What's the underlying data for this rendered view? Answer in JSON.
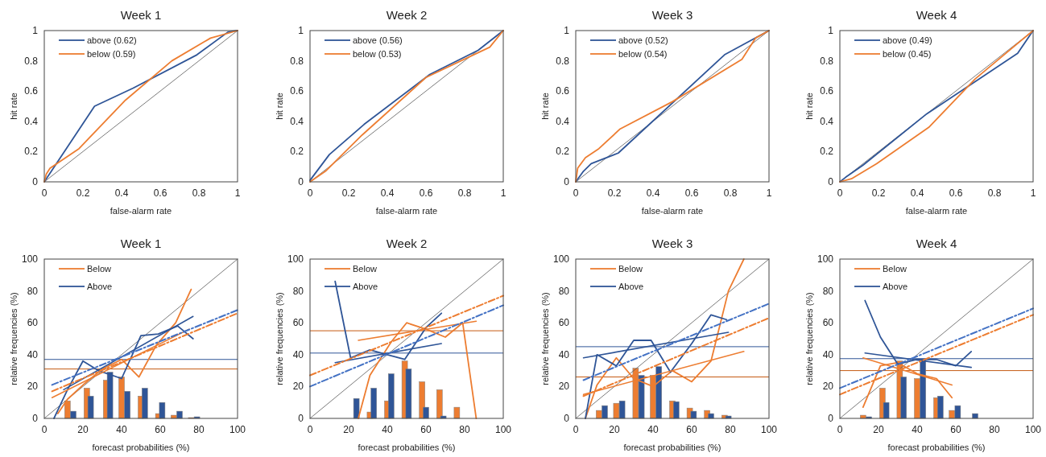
{
  "chart_data": [
    {
      "type": "line",
      "title": "Week 1",
      "xlabel": "false-alarm rate",
      "ylabel": "hit rate",
      "xlim": [
        0,
        1
      ],
      "ylim": [
        0,
        1
      ],
      "xticks": [
        0,
        0.2,
        0.4,
        0.6,
        0.8,
        1
      ],
      "yticks": [
        0,
        0.2,
        0.4,
        0.6,
        0.8,
        1
      ],
      "legend": "top left",
      "series": [
        {
          "color": "#595959",
          "x": [
            0,
            1
          ],
          "values": [
            0,
            1
          ]
        },
        {
          "name": "above (0.62)",
          "color": "#2f5597",
          "x": [
            0,
            0.26,
            0.46,
            0.79,
            0.95,
            1
          ],
          "values": [
            0,
            0.5,
            0.62,
            0.84,
            0.99,
            1
          ]
        },
        {
          "name": "below (0.59)",
          "color": "#ed7d31",
          "x": [
            0,
            0.01,
            0.03,
            0.18,
            0.42,
            0.66,
            0.86,
            1
          ],
          "values": [
            0,
            0.05,
            0.09,
            0.22,
            0.54,
            0.8,
            0.95,
            1
          ]
        }
      ]
    },
    {
      "type": "line",
      "title": "Week 2",
      "xlabel": "false-alarm rate",
      "ylabel": "hit rate",
      "xlim": [
        0,
        1
      ],
      "ylim": [
        0,
        1
      ],
      "xticks": [
        0,
        0.2,
        0.4,
        0.6,
        0.8,
        1
      ],
      "yticks": [
        0,
        0.2,
        0.4,
        0.6,
        0.8,
        1
      ],
      "legend": "top left",
      "series": [
        {
          "color": "#595959",
          "x": [
            0,
            1
          ],
          "values": [
            0,
            1
          ]
        },
        {
          "name": "above (0.56)",
          "color": "#2f5597",
          "x": [
            0,
            0.1,
            0.28,
            0.62,
            0.87,
            1
          ],
          "values": [
            0.01,
            0.18,
            0.38,
            0.71,
            0.87,
            1
          ]
        },
        {
          "name": "below (0.53)",
          "color": "#ed7d31",
          "x": [
            0,
            0.08,
            0.27,
            0.6,
            0.93,
            1
          ],
          "values": [
            0,
            0.07,
            0.31,
            0.69,
            0.89,
            1
          ]
        }
      ]
    },
    {
      "type": "line",
      "title": "Week 3",
      "xlabel": "false-alarm rate",
      "ylabel": "hit rate",
      "xlim": [
        0,
        1
      ],
      "ylim": [
        0,
        1
      ],
      "xticks": [
        0,
        0.2,
        0.4,
        0.6,
        0.8,
        1
      ],
      "yticks": [
        0,
        0.2,
        0.4,
        0.6,
        0.8,
        1
      ],
      "legend": "top left",
      "series": [
        {
          "color": "#595959",
          "x": [
            0,
            1
          ],
          "values": [
            0,
            1
          ]
        },
        {
          "name": "above (0.52)",
          "color": "#2f5597",
          "x": [
            0,
            0.04,
            0.08,
            0.22,
            0.77,
            1
          ],
          "values": [
            0,
            0.07,
            0.12,
            0.19,
            0.84,
            1
          ]
        },
        {
          "name": "below (0.54)",
          "color": "#ed7d31",
          "x": [
            0,
            0.01,
            0.05,
            0.12,
            0.23,
            0.5,
            0.86,
            0.93,
            1
          ],
          "values": [
            0,
            0.09,
            0.16,
            0.22,
            0.35,
            0.53,
            0.81,
            0.95,
            1
          ]
        }
      ]
    },
    {
      "type": "line",
      "title": "Week 4",
      "xlabel": "false-alarm rate",
      "ylabel": "hit rate",
      "xlim": [
        0,
        1
      ],
      "ylim": [
        0,
        1
      ],
      "xticks": [
        0,
        0.2,
        0.4,
        0.6,
        0.8,
        1
      ],
      "yticks": [
        0,
        0.2,
        0.4,
        0.6,
        0.8,
        1
      ],
      "legend": "top left",
      "series": [
        {
          "color": "#595959",
          "x": [
            0,
            1
          ],
          "values": [
            0,
            1
          ]
        },
        {
          "name": "above (0.49)",
          "color": "#2f5597",
          "x": [
            0,
            0.03,
            0.12,
            0.45,
            0.92,
            1
          ],
          "values": [
            0,
            0.03,
            0.11,
            0.45,
            0.85,
            1
          ]
        },
        {
          "name": "below (0.45)",
          "color": "#ed7d31",
          "x": [
            0,
            0.06,
            0.19,
            0.46,
            0.7,
            1
          ],
          "values": [
            0,
            0.02,
            0.12,
            0.36,
            0.68,
            1
          ]
        }
      ]
    },
    {
      "type": "line",
      "title": "Week 1",
      "xlabel": "forecast probabilities (%)",
      "ylabel": "relative frequencies (%)",
      "xlim": [
        0,
        100
      ],
      "ylim": [
        0,
        100
      ],
      "xticks": [
        0,
        20,
        40,
        60,
        80,
        100
      ],
      "yticks": [
        0,
        20,
        40,
        60,
        80,
        100
      ],
      "legend": "top left",
      "ref_lines": [
        {
          "axis": "y",
          "value": 37,
          "color": "#2f5597"
        },
        {
          "axis": "y",
          "value": 31,
          "color": "#c55a11"
        }
      ],
      "series": [
        {
          "type": "bar",
          "color": "#ed7d31",
          "x": [
            12,
            22,
            32,
            40,
            50,
            59,
            67,
            76
          ],
          "values": [
            11,
            19,
            24,
            26,
            14,
            3,
            2,
            0.5
          ]
        },
        {
          "type": "bar",
          "color": "#2f5597",
          "x": [
            15,
            24,
            34,
            43,
            52,
            61,
            70,
            79
          ],
          "values": [
            4.5,
            14,
            29,
            17,
            19,
            10,
            4.5,
            1
          ]
        },
        {
          "color": "#595959",
          "x": [
            0,
            100
          ],
          "values": [
            0,
            100
          ]
        },
        {
          "name": "Below",
          "color": "#ed7d31",
          "x": [
            7,
            12,
            21,
            30,
            40,
            49,
            58,
            68,
            76
          ],
          "values": [
            3,
            12,
            22,
            31,
            37,
            26,
            46,
            60,
            81
          ]
        },
        {
          "name": "Above",
          "color": "#2f5597",
          "x": [
            5,
            12,
            20,
            28,
            40,
            50,
            59,
            69,
            77
          ],
          "values": [
            0,
            18,
            36,
            30,
            25,
            52,
            53,
            58,
            50
          ]
        },
        {
          "color": "#ed7d31",
          "x": [
            4,
            75
          ],
          "values": [
            13,
            56
          ]
        },
        {
          "color": "#2f5597",
          "x": [
            10,
            77
          ],
          "values": [
            18,
            64
          ]
        },
        {
          "color": "#4472c4",
          "line_style": "dashed",
          "x": [
            4,
            100
          ],
          "values": [
            21,
            68
          ]
        },
        {
          "color": "#ed7d31",
          "line_style": "dashed",
          "x": [
            4,
            100
          ],
          "values": [
            17,
            66
          ]
        }
      ]
    },
    {
      "type": "line",
      "title": "Week 2",
      "xlabel": "forecast probabilities (%)",
      "ylabel": "relative frequencies (%)",
      "xlim": [
        0,
        100
      ],
      "ylim": [
        0,
        100
      ],
      "xticks": [
        0,
        20,
        40,
        60,
        80,
        100
      ],
      "yticks": [
        0,
        20,
        40,
        60,
        80,
        100
      ],
      "legend": "top left",
      "ref_lines": [
        {
          "axis": "y",
          "value": 55,
          "color": "#c55a11"
        },
        {
          "axis": "y",
          "value": 41,
          "color": "#2f5597"
        }
      ],
      "series": [
        {
          "type": "bar",
          "color": "#ed7d31",
          "x": [
            31,
            40,
            49,
            58,
            67,
            76
          ],
          "values": [
            4,
            11,
            36,
            23,
            18,
            7
          ]
        },
        {
          "type": "bar",
          "color": "#2f5597",
          "x": [
            24,
            33,
            42,
            51,
            60,
            69
          ],
          "values": [
            12.5,
            19,
            28,
            31,
            7,
            1.5
          ]
        },
        {
          "color": "#595959",
          "x": [
            0,
            100
          ],
          "values": [
            0,
            100
          ]
        },
        {
          "name": "Below",
          "color": "#ed7d31",
          "x": [
            25,
            31,
            42,
            50,
            60,
            70,
            79,
            86
          ],
          "values": [
            0,
            27,
            48,
            60,
            56,
            51,
            60,
            0
          ]
        },
        {
          "name": "Above",
          "color": "#2f5597",
          "x": [
            13,
            21,
            31,
            40,
            49,
            60,
            68
          ],
          "values": [
            86,
            38,
            43,
            40,
            37,
            57,
            66
          ]
        },
        {
          "color": "#ed7d31",
          "x": [
            25,
            86
          ],
          "values": [
            49,
            61
          ]
        },
        {
          "color": "#2f5597",
          "x": [
            13,
            68
          ],
          "values": [
            35,
            47
          ]
        },
        {
          "color": "#ed7d31",
          "line_style": "dashed",
          "x": [
            0,
            100
          ],
          "values": [
            27,
            77
          ]
        },
        {
          "color": "#4472c4",
          "line_style": "dashed",
          "x": [
            0,
            100
          ],
          "values": [
            20,
            71
          ]
        }
      ]
    },
    {
      "type": "line",
      "title": "Week 3",
      "xlabel": "forecast probabilities (%)",
      "ylabel": "relative frequencies (%)",
      "xlim": [
        0,
        100
      ],
      "ylim": [
        0,
        100
      ],
      "xticks": [
        0,
        20,
        40,
        60,
        80,
        100
      ],
      "yticks": [
        0,
        20,
        40,
        60,
        80,
        100
      ],
      "legend": "top left",
      "ref_lines": [
        {
          "axis": "y",
          "value": 45,
          "color": "#2f5597"
        },
        {
          "axis": "y",
          "value": 26,
          "color": "#c55a11"
        }
      ],
      "series": [
        {
          "type": "bar",
          "color": "#ed7d31",
          "x": [
            12,
            21,
            31,
            40,
            50,
            59,
            68,
            77
          ],
          "values": [
            5,
            9.5,
            31.5,
            27,
            11,
            6.5,
            5,
            2
          ]
        },
        {
          "type": "bar",
          "color": "#2f5597",
          "x": [
            15,
            24,
            34,
            43,
            52,
            61,
            70,
            79
          ],
          "values": [
            8,
            11,
            27,
            32.5,
            10.5,
            4.5,
            3,
            1.5
          ]
        },
        {
          "color": "#595959",
          "x": [
            0,
            100
          ],
          "values": [
            0,
            100
          ]
        },
        {
          "name": "Below",
          "color": "#ed7d31",
          "x": [
            5,
            11,
            21,
            30,
            40,
            50,
            60,
            70,
            79,
            87
          ],
          "values": [
            0,
            21,
            38,
            25,
            20,
            30,
            23,
            36,
            80,
            100
          ]
        },
        {
          "name": "Above",
          "color": "#2f5597",
          "x": [
            5,
            11,
            21,
            30,
            39,
            49,
            60,
            70,
            78
          ],
          "values": [
            0,
            40,
            33,
            49,
            49,
            29,
            47,
            65,
            62
          ]
        },
        {
          "color": "#ed7d31",
          "x": [
            4,
            87
          ],
          "values": [
            15,
            42
          ]
        },
        {
          "color": "#2f5597",
          "x": [
            4,
            79
          ],
          "values": [
            38,
            54
          ]
        },
        {
          "color": "#4472c4",
          "line_style": "dashed",
          "x": [
            4,
            100
          ],
          "values": [
            24,
            72
          ]
        },
        {
          "color": "#ed7d31",
          "line_style": "dashed",
          "x": [
            4,
            100
          ],
          "values": [
            14,
            63
          ]
        }
      ]
    },
    {
      "type": "line",
      "title": "Week 4",
      "xlabel": "forecast probabilities (%)",
      "ylabel": "relative frequencies (%)",
      "xlim": [
        0,
        100
      ],
      "ylim": [
        0,
        100
      ],
      "xticks": [
        0,
        20,
        40,
        60,
        80,
        100
      ],
      "yticks": [
        0,
        20,
        40,
        60,
        80,
        100
      ],
      "legend": "top left",
      "ref_lines": [
        {
          "axis": "y",
          "value": 37.5,
          "color": "#2f5597"
        },
        {
          "axis": "y",
          "value": 30,
          "color": "#c55a11"
        }
      ],
      "series": [
        {
          "type": "bar",
          "color": "#ed7d31",
          "x": [
            12,
            22,
            31,
            40,
            50,
            58
          ],
          "values": [
            2,
            19,
            36,
            25,
            13,
            5
          ]
        },
        {
          "type": "bar",
          "color": "#2f5597",
          "x": [
            15,
            24,
            33,
            43,
            52,
            61,
            70
          ],
          "values": [
            1,
            10,
            26,
            37,
            14,
            8,
            3
          ]
        },
        {
          "color": "#595959",
          "x": [
            0,
            100
          ],
          "values": [
            0,
            100
          ]
        },
        {
          "name": "Below",
          "color": "#ed7d31",
          "x": [
            12,
            21,
            30,
            40,
            50,
            58
          ],
          "values": [
            7,
            33,
            35,
            28,
            25,
            13
          ]
        },
        {
          "name": "Above",
          "color": "#2f5597",
          "x": [
            13,
            21,
            30,
            40,
            50,
            60,
            68
          ],
          "values": [
            74,
            51,
            34,
            37,
            37,
            33,
            42
          ]
        },
        {
          "color": "#ed7d31",
          "x": [
            12,
            58
          ],
          "values": [
            38,
            21
          ]
        },
        {
          "color": "#2f5597",
          "x": [
            13,
            68
          ],
          "values": [
            41,
            32
          ]
        },
        {
          "color": "#4472c4",
          "line_style": "dashed",
          "x": [
            0,
            100
          ],
          "values": [
            19,
            69
          ]
        },
        {
          "color": "#ed7d31",
          "line_style": "dashed",
          "x": [
            0,
            100
          ],
          "values": [
            15,
            65
          ]
        }
      ]
    }
  ]
}
